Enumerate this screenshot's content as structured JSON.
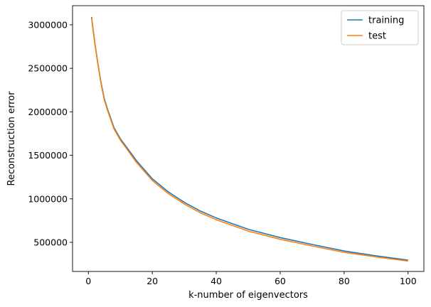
{
  "chart_data": {
    "type": "line",
    "xlabel": "k-number of eigenvectors",
    "ylabel": "Reconstruction error",
    "xlim": [
      -4.95,
      104.95
    ],
    "ylim": [
      165000,
      3220000
    ],
    "xticks": [
      0,
      20,
      40,
      60,
      80,
      100
    ],
    "yticks": [
      500000,
      1000000,
      1500000,
      2000000,
      2500000,
      3000000
    ],
    "grid": false,
    "legend_position": "top-right",
    "series": [
      {
        "name": "training",
        "color": "#1f77b4",
        "x": [
          1,
          2,
          3,
          4,
          5,
          6,
          8,
          10,
          12,
          15,
          20,
          25,
          30,
          35,
          40,
          50,
          60,
          70,
          80,
          90,
          100
        ],
        "y": [
          3090000,
          2800000,
          2550000,
          2330000,
          2150000,
          2030000,
          1820000,
          1690000,
          1590000,
          1440000,
          1230000,
          1080000,
          960000,
          860000,
          780000,
          650000,
          555000,
          475000,
          400000,
          345000,
          295000
        ]
      },
      {
        "name": "test",
        "color": "#ff7f0e",
        "x": [
          1,
          2,
          3,
          4,
          5,
          6,
          8,
          10,
          12,
          15,
          20,
          25,
          30,
          35,
          40,
          50,
          60,
          70,
          80,
          90,
          100
        ],
        "y": [
          3080000,
          2790000,
          2540000,
          2315000,
          2135000,
          2015000,
          1805000,
          1675000,
          1575000,
          1420000,
          1210000,
          1060000,
          940000,
          840000,
          760000,
          630000,
          535000,
          458000,
          385000,
          332000,
          285000
        ]
      }
    ]
  }
}
